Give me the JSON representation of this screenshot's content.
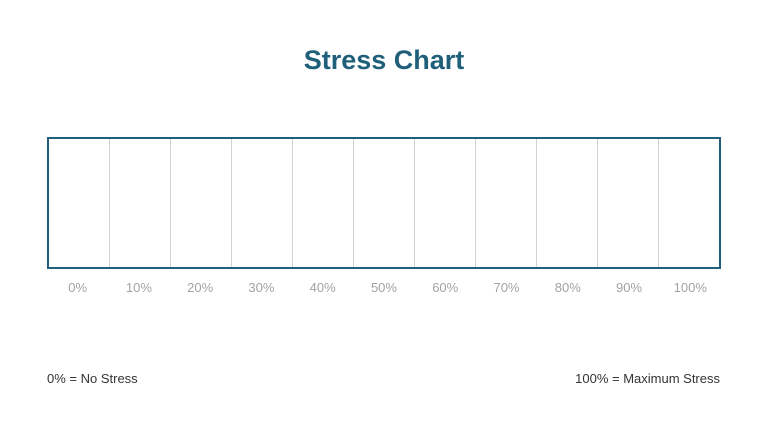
{
  "title": "Stress Chart",
  "scale": {
    "ticks": [
      "0%",
      "10%",
      "20%",
      "30%",
      "40%",
      "50%",
      "60%",
      "70%",
      "80%",
      "90%",
      "100%"
    ]
  },
  "legend": {
    "min": "0% = No Stress",
    "max": "100% = Maximum Stress"
  },
  "colors": {
    "accent": "#1f5f7a",
    "gridline": "#d2d2d2",
    "tick_text": "#a3a3a3",
    "legend_text": "#333333"
  }
}
